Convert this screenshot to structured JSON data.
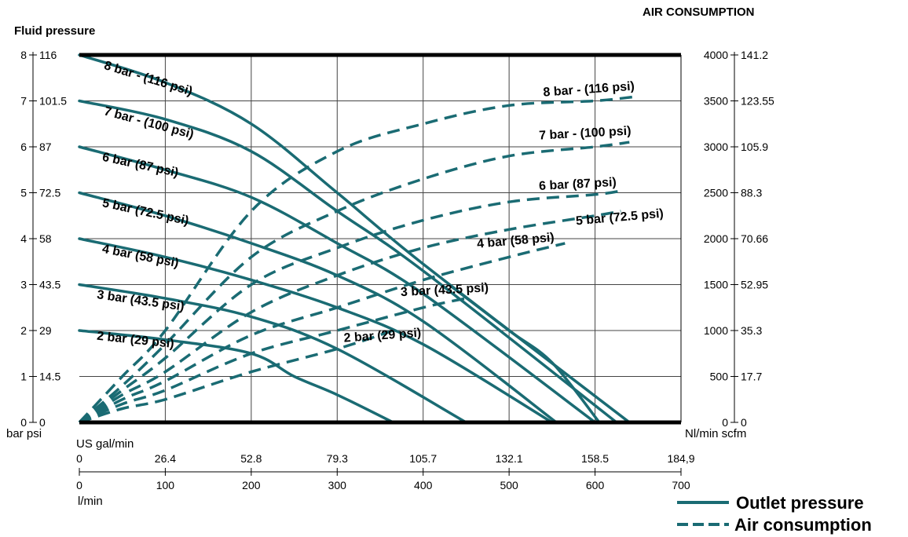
{
  "chart_data": {
    "type": "line",
    "title_left": "Fluid pressure",
    "title_right": "AIR CONSUMPTION",
    "left_axis_units": "bar psi",
    "left_ticks": [
      {
        "bar": "0",
        "psi": "0",
        "value": 0
      },
      {
        "bar": "1",
        "psi": "14.5",
        "value": 1
      },
      {
        "bar": "2",
        "psi": "29",
        "value": 2
      },
      {
        "bar": "3",
        "psi": "43.5",
        "value": 3
      },
      {
        "bar": "4",
        "psi": "58",
        "value": 4
      },
      {
        "bar": "5",
        "psi": "72.5",
        "value": 5
      },
      {
        "bar": "6",
        "psi": "87",
        "value": 6
      },
      {
        "bar": "7",
        "psi": "101.5",
        "value": 7
      },
      {
        "bar": "8",
        "psi": "116",
        "value": 8
      }
    ],
    "right_axis_units": "Nl/min scfm",
    "right_ticks": [
      {
        "nl": "0",
        "scfm": "0",
        "value": 0
      },
      {
        "nl": "500",
        "scfm": "17.7",
        "value": 500
      },
      {
        "nl": "1000",
        "scfm": "35.3",
        "value": 1000
      },
      {
        "nl": "1500",
        "scfm": "52.95",
        "value": 1500
      },
      {
        "nl": "2000",
        "scfm": "70.66",
        "value": 2000
      },
      {
        "nl": "2500",
        "scfm": "88.3",
        "value": 2500
      },
      {
        "nl": "3000",
        "scfm": "105.9",
        "value": 3000
      },
      {
        "nl": "3500",
        "scfm": "123.55",
        "value": 3500
      },
      {
        "nl": "4000",
        "scfm": "141.2",
        "value": 4000
      }
    ],
    "x_gal_label": "US gal/min",
    "x_gal_ticks": [
      {
        "label": "0",
        "lmin": 0
      },
      {
        "label": "26.4",
        "lmin": 100
      },
      {
        "label": "52.8",
        "lmin": 200
      },
      {
        "label": "79.3",
        "lmin": 300
      },
      {
        "label": "105.7",
        "lmin": 400
      },
      {
        "label": "132.1",
        "lmin": 500
      },
      {
        "label": "158.5",
        "lmin": 600
      },
      {
        "label": "184,9",
        "lmin": 700
      }
    ],
    "x_lmin_label": "l/min",
    "x_lmin_ticks": [
      {
        "label": "0",
        "value": 0
      },
      {
        "label": "100",
        "value": 100
      },
      {
        "label": "200",
        "value": 200
      },
      {
        "label": "300",
        "value": 300
      },
      {
        "label": "400",
        "value": 400
      },
      {
        "label": "500",
        "value": 500
      },
      {
        "label": "600",
        "value": 600
      },
      {
        "label": "700",
        "value": 700
      }
    ],
    "xlim": [
      0,
      700
    ],
    "ylim_left": [
      0,
      8
    ],
    "ylim_right": [
      0,
      4000
    ],
    "grid": true,
    "color": "#1a6b73",
    "legend_position": "bottom-right",
    "legend": [
      {
        "label": "Outlet pressure",
        "style": "solid"
      },
      {
        "label": "Air consumption",
        "style": "dashed"
      }
    ],
    "outlet_series": [
      {
        "name": "8 bar - (116 psi)",
        "points": [
          [
            0,
            8
          ],
          [
            100,
            7.4
          ],
          [
            200,
            6.5
          ],
          [
            300,
            5.0
          ],
          [
            400,
            3.45
          ],
          [
            640,
            0
          ]
        ]
      },
      {
        "name": "7 bar - (100 psi)",
        "points": [
          [
            0,
            7
          ],
          [
            100,
            6.6
          ],
          [
            200,
            5.9
          ],
          [
            300,
            4.6
          ],
          [
            400,
            3.3
          ],
          [
            625,
            0
          ]
        ]
      },
      {
        "name": "6 bar (87 psi)",
        "points": [
          [
            0,
            6
          ],
          [
            100,
            5.5
          ],
          [
            200,
            4.9
          ],
          [
            300,
            3.9
          ],
          [
            400,
            2.8
          ],
          [
            600,
            0
          ]
        ]
      },
      {
        "name": "5 bar (72.5 psi)",
        "points": [
          [
            0,
            5
          ],
          [
            100,
            4.5
          ],
          [
            200,
            3.9
          ],
          [
            300,
            3.2
          ],
          [
            400,
            2.2
          ],
          [
            555,
            0
          ]
        ]
      },
      {
        "name": "4 bar (58 psi)",
        "points": [
          [
            0,
            4
          ],
          [
            100,
            3.6
          ],
          [
            200,
            3.1
          ],
          [
            300,
            2.5
          ],
          [
            400,
            1.7
          ],
          [
            550,
            0
          ]
        ]
      },
      {
        "name": "3 bar (43.5 psi)",
        "points": [
          [
            0,
            3
          ],
          [
            100,
            2.7
          ],
          [
            200,
            2.3
          ],
          [
            300,
            1.6
          ],
          [
            450,
            0
          ]
        ]
      },
      {
        "name": "2 bar (29 psi)",
        "points": [
          [
            0,
            2
          ],
          [
            100,
            1.8
          ],
          [
            200,
            1.5
          ],
          [
            250,
            1.0
          ],
          [
            300,
            0.6
          ],
          [
            365,
            0
          ]
        ]
      },
      {
        "name": "3 bar (43.5 psi)",
        "points": [
          [
            430,
            3.0
          ],
          [
            500,
            2.0
          ],
          [
            550,
            1.3
          ],
          [
            605,
            0
          ]
        ]
      }
    ],
    "air_series": [
      {
        "name": "8 bar - (116 psi)",
        "points": [
          [
            0,
            0
          ],
          [
            50,
            500
          ],
          [
            100,
            1000
          ],
          [
            200,
            2300
          ],
          [
            300,
            2950
          ],
          [
            400,
            3250
          ],
          [
            500,
            3450
          ],
          [
            600,
            3500
          ],
          [
            650,
            3550
          ]
        ]
      },
      {
        "name": "7 bar - (100 psi)",
        "points": [
          [
            0,
            0
          ],
          [
            50,
            400
          ],
          [
            100,
            850
          ],
          [
            200,
            1800
          ],
          [
            300,
            2300
          ],
          [
            400,
            2650
          ],
          [
            500,
            2900
          ],
          [
            600,
            3000
          ],
          [
            640,
            3050
          ]
        ]
      },
      {
        "name": "6 bar (87 psi)",
        "points": [
          [
            0,
            0
          ],
          [
            50,
            350
          ],
          [
            100,
            700
          ],
          [
            200,
            1500
          ],
          [
            300,
            1900
          ],
          [
            400,
            2200
          ],
          [
            500,
            2400
          ],
          [
            600,
            2480
          ],
          [
            630,
            2520
          ]
        ]
      },
      {
        "name": "5 bar (72.5 psi)",
        "points": [
          [
            0,
            0
          ],
          [
            50,
            300
          ],
          [
            100,
            550
          ],
          [
            200,
            1200
          ],
          [
            300,
            1600
          ],
          [
            400,
            1900
          ],
          [
            500,
            2100
          ],
          [
            600,
            2250
          ],
          [
            630,
            2300
          ]
        ]
      },
      {
        "name": "4 bar (58 psi)",
        "points": [
          [
            0,
            0
          ],
          [
            50,
            250
          ],
          [
            100,
            450
          ],
          [
            200,
            950
          ],
          [
            300,
            1250
          ],
          [
            400,
            1550
          ],
          [
            500,
            1800
          ],
          [
            565,
            1950
          ]
        ]
      },
      {
        "name": "3 bar (43.5 psi)",
        "points": [
          [
            0,
            0
          ],
          [
            50,
            200
          ],
          [
            100,
            350
          ],
          [
            200,
            750
          ],
          [
            300,
            1000
          ],
          [
            400,
            1250
          ],
          [
            450,
            1350
          ]
        ]
      },
      {
        "name": "2 bar (29 psi)",
        "points": [
          [
            0,
            0
          ],
          [
            50,
            150
          ],
          [
            100,
            250
          ],
          [
            200,
            550
          ],
          [
            300,
            800
          ],
          [
            365,
            1000
          ]
        ]
      }
    ],
    "annotations": [
      {
        "text": "8 bar - (116 psi)",
        "side": "left",
        "bar": 8
      },
      {
        "text": "7 bar - (100 psi)",
        "side": "left",
        "bar": 7
      },
      {
        "text": "6 bar (87 psi)",
        "side": "left",
        "bar": 6
      },
      {
        "text": "5 bar (72.5 psi)",
        "side": "left",
        "bar": 5
      },
      {
        "text": "4 bar (58 psi)",
        "side": "left",
        "bar": 4
      },
      {
        "text": "3 bar (43.5 psi)",
        "side": "left",
        "bar": 3
      },
      {
        "text": "2 bar (29 psi)",
        "side": "left",
        "bar": 2
      },
      {
        "text": "8 bar - (116 psi)",
        "side": "right",
        "bar": 8
      },
      {
        "text": "7 bar - (100 psi)",
        "side": "right",
        "bar": 7
      },
      {
        "text": "6 bar (87 psi)",
        "side": "right",
        "bar": 6
      },
      {
        "text": "5 bar (72.5 psi)",
        "side": "right",
        "bar": 5
      },
      {
        "text": "4 bar (58 psi)",
        "side": "right",
        "bar": 4
      },
      {
        "text": "3 bar (43.5 psi)",
        "side": "middle",
        "bar": 3
      },
      {
        "text": "2 bar (29 psi)",
        "side": "middle",
        "bar": 2
      }
    ]
  }
}
